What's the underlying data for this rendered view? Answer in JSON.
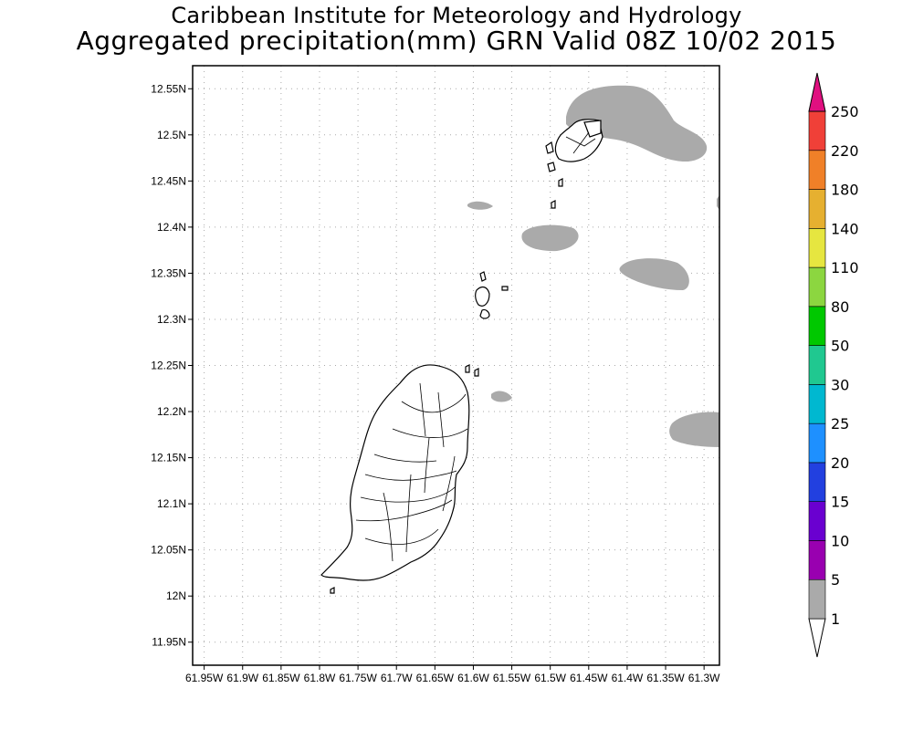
{
  "header": {
    "title_line1": "Caribbean Institute for Meteorology and Hydrology",
    "title_line2": "Aggregated precipitation(mm) GRN Valid 08Z 10/02 2015"
  },
  "map": {
    "lat_labels": [
      "12.55N",
      "12.5N",
      "12.45N",
      "12.4N",
      "12.35N",
      "12.3N",
      "12.25N",
      "12.2N",
      "12.15N",
      "12.1N",
      "12.05N",
      "12N",
      "11.95N"
    ],
    "lon_labels": [
      "61.95W",
      "61.9W",
      "61.85W",
      "61.8W",
      "61.75W",
      "61.7W",
      "61.65W",
      "61.6W",
      "61.55W",
      "61.5W",
      "61.45W",
      "61.4W",
      "61.35W",
      "61.3W"
    ],
    "lat_range": [
      11.925,
      12.575
    ],
    "lon_range": [
      -61.965,
      -61.28
    ],
    "grid": true,
    "land_color": "#ffffff",
    "coast_color": "#000000",
    "precip_patch_color": "#aaaaaa"
  },
  "colorbar": {
    "labels": [
      "1",
      "5",
      "10",
      "15",
      "20",
      "25",
      "30",
      "50",
      "80",
      "110",
      "140",
      "180",
      "220",
      "250"
    ],
    "colors": [
      "#aaaaaa",
      "#9900b0",
      "#6a00d0",
      "#2240e0",
      "#1e90ff",
      "#00b8d0",
      "#20c890",
      "#00c800",
      "#8cd640",
      "#e6e640",
      "#e6b030",
      "#f08028",
      "#f04038",
      "#e01080"
    ]
  }
}
